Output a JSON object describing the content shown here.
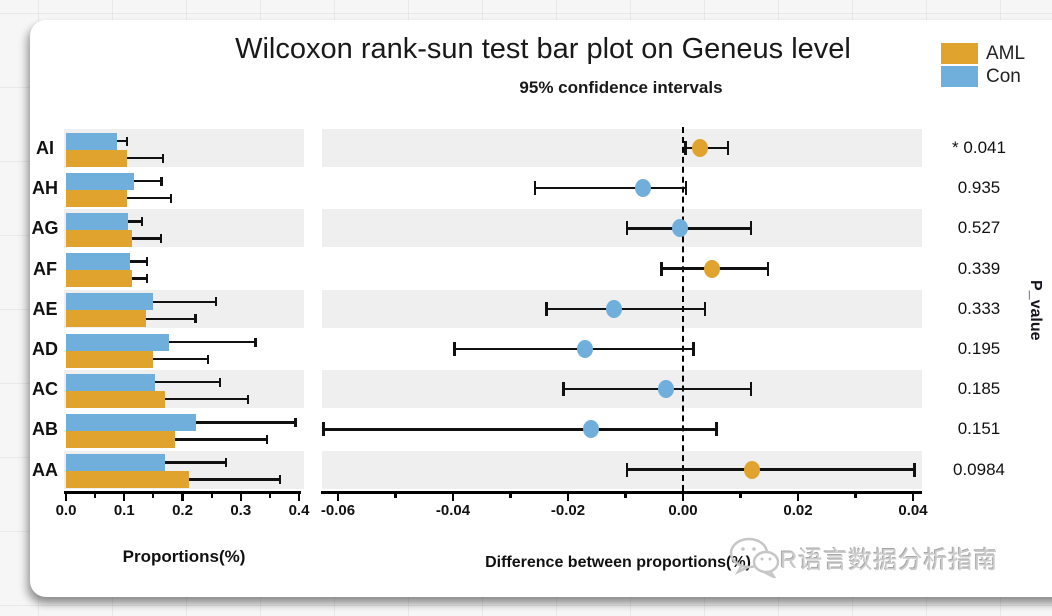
{
  "watermark": {
    "text": "R语言数据分析指南"
  },
  "chart_data": {
    "type": "bar",
    "title": "Wilcoxon rank-sun test bar plot on Geneus level",
    "subtitle": "95% confidence intervals",
    "categories": [
      "AI",
      "AH",
      "AG",
      "AF",
      "AE",
      "AD",
      "AC",
      "AB",
      "AA"
    ],
    "legend": [
      {
        "label": "AML",
        "color": "#E0A42E"
      },
      {
        "label": "Con",
        "color": "#70AEDB"
      }
    ],
    "series": [
      {
        "name": "Con",
        "color": "#70AEDB",
        "values": [
          0.088,
          0.117,
          0.106,
          0.11,
          0.149,
          0.177,
          0.153,
          0.223,
          0.17
        ],
        "upper": [
          0.106,
          0.166,
          0.132,
          0.141,
          0.259,
          0.327,
          0.266,
          0.396,
          0.276
        ]
      },
      {
        "name": "AML",
        "color": "#E0A42E",
        "values": [
          0.105,
          0.105,
          0.113,
          0.113,
          0.137,
          0.149,
          0.17,
          0.187,
          0.211
        ],
        "upper": [
          0.168,
          0.182,
          0.165,
          0.141,
          0.224,
          0.245,
          0.314,
          0.347,
          0.369
        ]
      }
    ],
    "left_axis": {
      "label": "Proportions(%)",
      "ticks": [
        "0.0",
        "0.1",
        "0.2",
        "0.3",
        "0.4"
      ],
      "tick_values": [
        0,
        0.1,
        0.2,
        0.3,
        0.4
      ],
      "range": [
        0,
        0.4
      ]
    },
    "diff": {
      "values": [
        0.003,
        -0.007,
        -0.0005,
        0.005,
        -0.012,
        -0.017,
        -0.003,
        -0.016,
        0.012
      ],
      "ci_low": [
        0.0002,
        -0.026,
        -0.01,
        -0.004,
        -0.024,
        -0.04,
        -0.021,
        -0.0628,
        -0.01
      ],
      "ci_high": [
        0.008,
        0.0007,
        0.012,
        0.015,
        0.004,
        0.002,
        0.012,
        0.006,
        0.0405
      ],
      "dot_series": [
        "AML",
        "Con",
        "Con",
        "AML",
        "Con",
        "Con",
        "Con",
        "Con",
        "AML"
      ],
      "zero_reference": 0
    },
    "right_axis": {
      "label": "Difference between proportions(%)",
      "ticks": [
        "-0.06",
        "-0.04",
        "-0.02",
        "0.00",
        "0.02",
        "0.04"
      ],
      "tick_values": [
        -0.06,
        -0.04,
        -0.02,
        0,
        0.02,
        0.04
      ],
      "range": [
        -0.0628,
        0.0416
      ]
    },
    "p_values": [
      "* 0.041",
      "0.935",
      "0.527",
      "0.339",
      "0.333",
      "0.195",
      "0.185",
      "0.151",
      "0.0984"
    ],
    "p_axis_label": "P_value",
    "band_color": "#efefef",
    "layout_hints": {
      "striped_rows": true,
      "grid": false,
      "legend_position": "top-right"
    }
  }
}
